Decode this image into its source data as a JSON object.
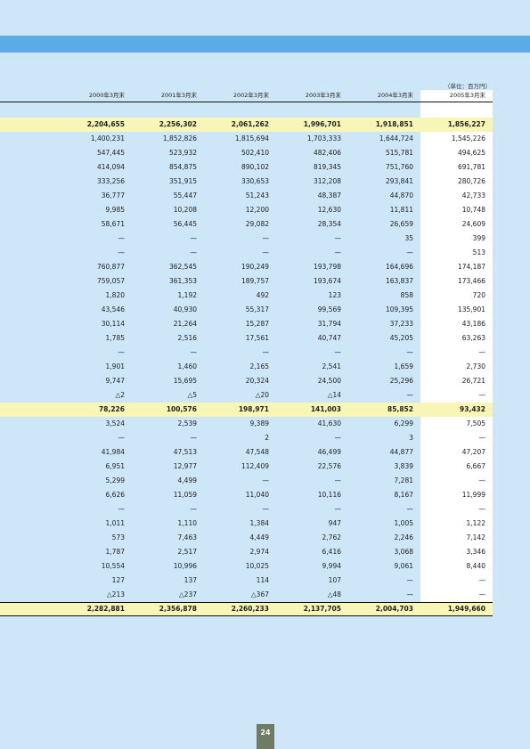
{
  "unit_label": "（単位：百万円）",
  "headers": [
    "2000年3月末",
    "2001年3月末",
    "2002年3月末",
    "2003年3月末",
    "2004年3月末",
    "2005年3月末"
  ],
  "rows": [
    {
      "type": "hl",
      "values": [
        "2,204,655",
        "2,256,302",
        "2,061,262",
        "1,996,701",
        "1,918,851",
        "1,856,227"
      ]
    },
    {
      "values": [
        "1,400,231",
        "1,852,826",
        "1,815,694",
        "1,703,333",
        "1,644,724",
        "1,545,226"
      ]
    },
    {
      "values": [
        "547,445",
        "523,932",
        "502,410",
        "482,406",
        "515,781",
        "494,625"
      ]
    },
    {
      "values": [
        "414,094",
        "854,875",
        "890,102",
        "819,345",
        "751,760",
        "691,781"
      ]
    },
    {
      "values": [
        "333,256",
        "351,915",
        "330,653",
        "312,208",
        "293,841",
        "280,726"
      ]
    },
    {
      "values": [
        "36,777",
        "55,447",
        "51,243",
        "48,387",
        "44,870",
        "42,733"
      ]
    },
    {
      "values": [
        "9,985",
        "10,208",
        "12,200",
        "12,630",
        "11,811",
        "10,748"
      ]
    },
    {
      "values": [
        "58,671",
        "56,445",
        "29,082",
        "28,354",
        "26,659",
        "24,609"
      ]
    },
    {
      "values": [
        "—",
        "—",
        "—",
        "—",
        "35",
        "399"
      ]
    },
    {
      "values": [
        "—",
        "—",
        "—",
        "—",
        "—",
        "513"
      ]
    },
    {
      "values": [
        "760,877",
        "362,545",
        "190,249",
        "193,798",
        "164,696",
        "174,187"
      ]
    },
    {
      "values": [
        "759,057",
        "361,353",
        "189,757",
        "193,674",
        "163,837",
        "173,466"
      ]
    },
    {
      "values": [
        "1,820",
        "1,192",
        "492",
        "123",
        "858",
        "720"
      ]
    },
    {
      "values": [
        "43,546",
        "40,930",
        "55,317",
        "99,569",
        "109,395",
        "135,901"
      ]
    },
    {
      "values": [
        "30,114",
        "21,264",
        "15,287",
        "31,794",
        "37,233",
        "43,186"
      ]
    },
    {
      "values": [
        "1,785",
        "2,516",
        "17,561",
        "40,747",
        "45,205",
        "63,263"
      ]
    },
    {
      "values": [
        "—",
        "—",
        "—",
        "—",
        "—",
        "—"
      ]
    },
    {
      "values": [
        "1,901",
        "1,460",
        "2,165",
        "2,541",
        "1,659",
        "2,730"
      ]
    },
    {
      "values": [
        "9,747",
        "15,695",
        "20,324",
        "24,500",
        "25,296",
        "26,721"
      ]
    },
    {
      "values": [
        "△2",
        "△5",
        "△20",
        "△14",
        "—",
        "—"
      ]
    },
    {
      "type": "hl",
      "values": [
        "78,226",
        "100,576",
        "198,971",
        "141,003",
        "85,852",
        "93,432"
      ]
    },
    {
      "values": [
        "3,524",
        "2,539",
        "9,389",
        "41,630",
        "6,299",
        "7,505"
      ]
    },
    {
      "values": [
        "—",
        "—",
        "2",
        "—",
        "3",
        "—"
      ]
    },
    {
      "values": [
        "41,984",
        "47,513",
        "47,548",
        "46,499",
        "44,877",
        "47,207"
      ]
    },
    {
      "values": [
        "6,951",
        "12,977",
        "112,409",
        "22,576",
        "3,839",
        "6,667"
      ]
    },
    {
      "values": [
        "5,299",
        "4,499",
        "—",
        "—",
        "7,281",
        "—"
      ]
    },
    {
      "values": [
        "6,626",
        "11,059",
        "11,040",
        "10,116",
        "8,167",
        "11,999"
      ]
    },
    {
      "values": [
        "—",
        "—",
        "—",
        "—",
        "—",
        "—"
      ]
    },
    {
      "values": [
        "1,011",
        "1,110",
        "1,384",
        "947",
        "1,005",
        "1,122"
      ]
    },
    {
      "values": [
        "573",
        "7,463",
        "4,449",
        "2,762",
        "2,246",
        "7,142"
      ]
    },
    {
      "values": [
        "1,787",
        "2,517",
        "2,974",
        "6,416",
        "3,068",
        "3,346"
      ]
    },
    {
      "values": [
        "10,554",
        "10,996",
        "10,025",
        "9,994",
        "9,061",
        "8,440"
      ]
    },
    {
      "values": [
        "127",
        "137",
        "114",
        "107",
        "—",
        "—"
      ]
    },
    {
      "values": [
        "△213",
        "△237",
        "△367",
        "△48",
        "—",
        "—"
      ]
    },
    {
      "type": "total",
      "values": [
        "2,282,881",
        "2,356,878",
        "2,260,233",
        "2,137,705",
        "2,004,703",
        "1,949,660"
      ]
    }
  ],
  "page_number": "24",
  "colors": {
    "background": "#cde7f8",
    "band": "#5aabe6",
    "highlight": "#f7f6b6",
    "page_tab": "#6f7b64"
  }
}
